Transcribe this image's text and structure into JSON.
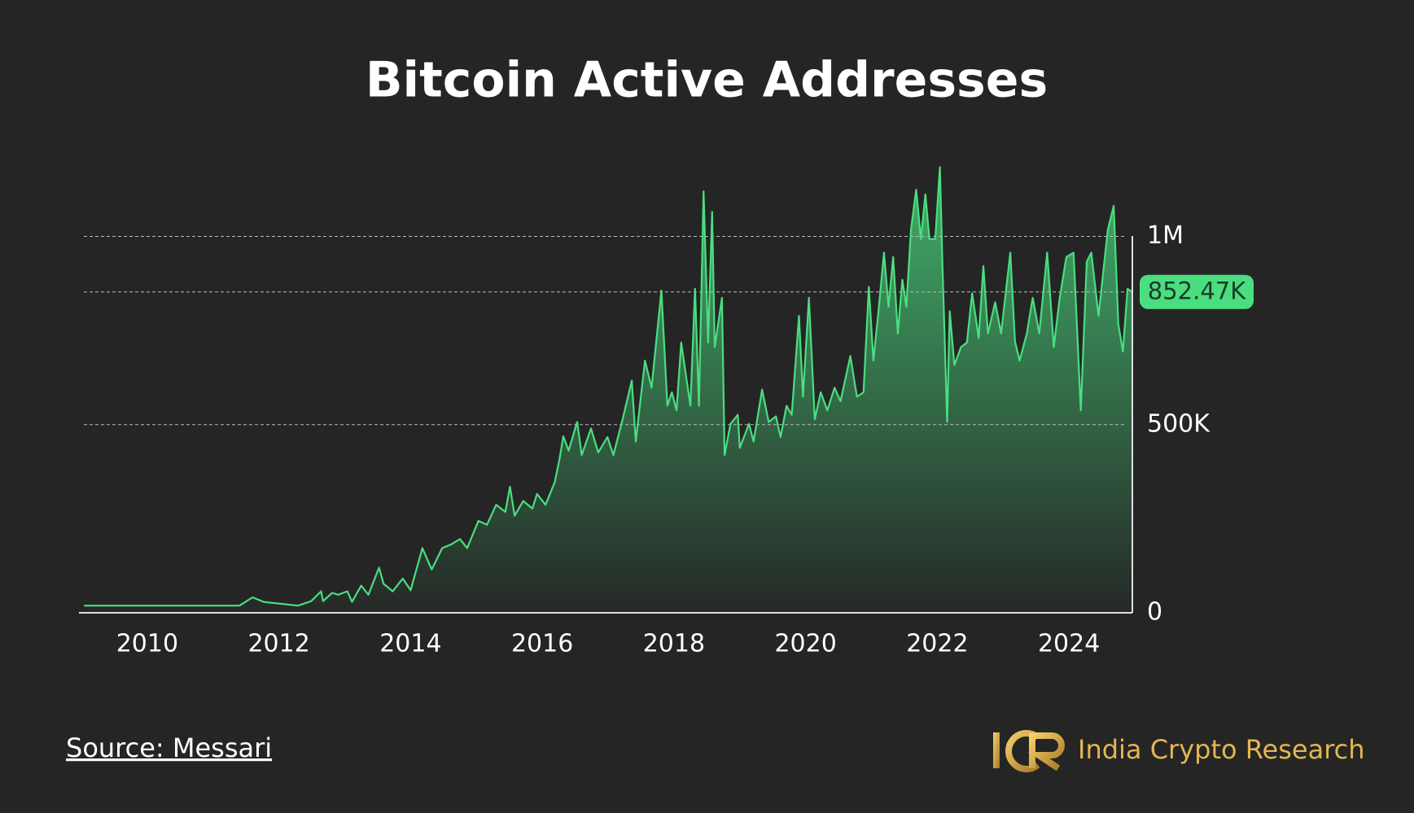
{
  "chart_data": {
    "type": "area",
    "title": "Bitcoin Active Addresses",
    "source": "Source: Messari",
    "brand": "India Crypto Research",
    "color": "#4ade80",
    "x": [
      2009.04,
      2010.0,
      2011.0,
      2011.4,
      2011.6,
      2011.77,
      2012.29,
      2012.49,
      2012.64,
      2012.67,
      2012.81,
      2012.9,
      2013.04,
      2013.11,
      2013.25,
      2013.36,
      2013.52,
      2013.59,
      2013.73,
      2013.88,
      2014.0,
      2014.18,
      2014.32,
      2014.48,
      2014.62,
      2014.75,
      2014.86,
      2015.03,
      2015.16,
      2015.3,
      2015.44,
      2015.51,
      2015.58,
      2015.71,
      2015.85,
      2015.92,
      2016.05,
      2016.19,
      2016.26,
      2016.32,
      2016.4,
      2016.53,
      2016.6,
      2016.74,
      2016.85,
      2016.99,
      2017.08,
      2017.22,
      2017.36,
      2017.42,
      2017.56,
      2017.66,
      2017.81,
      2017.9,
      2017.97,
      2018.04,
      2018.11,
      2018.25,
      2018.32,
      2018.38,
      2018.45,
      2018.52,
      2018.58,
      2018.62,
      2018.73,
      2018.77,
      2018.86,
      2018.97,
      2019.0,
      2019.14,
      2019.21,
      2019.34,
      2019.44,
      2019.55,
      2019.62,
      2019.71,
      2019.79,
      2019.9,
      2019.96,
      2020.05,
      2020.14,
      2020.23,
      2020.33,
      2020.44,
      2020.53,
      2020.68,
      2020.78,
      2020.88,
      2020.96,
      2021.03,
      2021.1,
      2021.19,
      2021.26,
      2021.33,
      2021.4,
      2021.47,
      2021.53,
      2021.6,
      2021.68,
      2021.75,
      2021.82,
      2021.88,
      2021.97,
      2022.04,
      2022.08,
      2022.15,
      2022.19,
      2022.26,
      2022.36,
      2022.45,
      2022.53,
      2022.63,
      2022.7,
      2022.77,
      2022.88,
      2022.97,
      2023.11,
      2023.18,
      2023.25,
      2023.36,
      2023.45,
      2023.55,
      2023.67,
      2023.77,
      2023.86,
      2023.96,
      2024.07,
      2024.18,
      2024.27,
      2024.34,
      2024.45,
      2024.59,
      2024.68,
      2024.75,
      2024.82,
      2024.89,
      2024.96
    ],
    "values": [
      19000,
      19000,
      19000,
      19000,
      41000,
      29000,
      19000,
      31000,
      57000,
      31000,
      53000,
      48000,
      57000,
      29000,
      72000,
      48000,
      120000,
      77000,
      57000,
      91000,
      60000,
      172000,
      115000,
      172000,
      182000,
      196000,
      172000,
      244000,
      234000,
      287000,
      268000,
      335000,
      258000,
      297000,
      277000,
      316000,
      287000,
      347000,
      407000,
      469000,
      431000,
      507000,
      419000,
      490000,
      426000,
      467000,
      419000,
      514000,
      617000,
      455000,
      670000,
      598000,
      856000,
      550000,
      586000,
      538000,
      718000,
      550000,
      861000,
      550000,
      1120000,
      718000,
      1065000,
      706000,
      837000,
      419000,
      502000,
      526000,
      438000,
      502000,
      455000,
      593000,
      507000,
      522000,
      467000,
      550000,
      526000,
      789000,
      574000,
      837000,
      514000,
      586000,
      538000,
      598000,
      562000,
      682000,
      574000,
      586000,
      866000,
      670000,
      789000,
      957000,
      813000,
      945000,
      742000,
      885000,
      813000,
      1017000,
      1124000,
      993000,
      1112000,
      993000,
      993000,
      1184000,
      921000,
      507000,
      801000,
      658000,
      706000,
      718000,
      849000,
      730000,
      921000,
      742000,
      825000,
      742000,
      957000,
      722000,
      670000,
      742000,
      837000,
      742000,
      957000,
      706000,
      837000,
      945000,
      957000,
      538000,
      933000,
      957000,
      789000,
      1017000,
      1081000,
      766000,
      694000,
      861000,
      852470
    ],
    "current_value": 852470,
    "current_label": "852.47K",
    "xlim": [
      2009,
      2025
    ],
    "xticks": [
      2010,
      2012,
      2014,
      2016,
      2018,
      2020,
      2022,
      2024
    ],
    "ylim": [
      0,
      1200000
    ],
    "yticks": [
      0,
      {
        "value": 500000,
        "label": "500K"
      },
      {
        "value": 1000000,
        "label": "1M"
      }
    ],
    "grid": true
  }
}
